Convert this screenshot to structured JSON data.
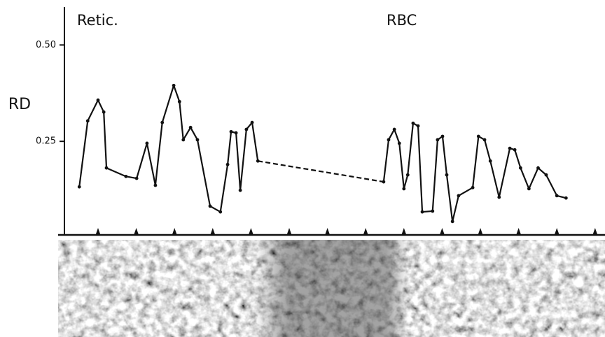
{
  "chart_data": {
    "type": "line",
    "title": "RD",
    "annotations": [
      "Retic.",
      "RBC"
    ],
    "color": "#111111",
    "ylim": [
      0,
      0.6
    ],
    "yticks": [
      {
        "value": 0.25,
        "label": "0.25"
      },
      {
        "value": 0.5,
        "label": "0.50"
      }
    ],
    "xlim": [
      0,
      14.25
    ],
    "xticks": [
      1,
      2,
      3,
      4,
      5,
      6,
      7,
      8,
      9,
      10,
      11,
      12,
      13,
      14
    ],
    "series": [
      {
        "style": "solid",
        "x": [
          0.51,
          0.73,
          1.0,
          1.15,
          1.22,
          1.73,
          2.01,
          2.28,
          2.5,
          2.68,
          2.98,
          3.13,
          3.23,
          3.42,
          3.6,
          3.93,
          4.2,
          4.39,
          4.48,
          4.61,
          4.72,
          4.88,
          5.03,
          5.18
        ],
        "values": [
          0.132,
          0.303,
          0.357,
          0.326,
          0.181,
          0.159,
          0.154,
          0.245,
          0.136,
          0.299,
          0.395,
          0.353,
          0.254,
          0.286,
          0.254,
          0.082,
          0.067,
          0.19,
          0.275,
          0.272,
          0.123,
          0.281,
          0.299,
          0.199
        ]
      },
      {
        "style": "dashed",
        "x": [
          5.18,
          8.47
        ],
        "values": [
          0.199,
          0.145
        ]
      },
      {
        "style": "solid",
        "x": [
          8.47,
          8.6,
          8.75,
          8.88,
          9.0,
          9.1,
          9.24,
          9.37,
          9.48,
          9.75,
          9.88,
          10.01,
          10.12,
          10.27,
          10.43,
          10.8,
          10.95,
          11.11,
          11.26,
          11.49,
          11.77,
          11.9,
          12.05,
          12.27,
          12.51,
          12.72,
          13.0,
          13.24
        ],
        "values": [
          0.145,
          0.254,
          0.281,
          0.245,
          0.127,
          0.163,
          0.297,
          0.29,
          0.067,
          0.069,
          0.254,
          0.263,
          0.163,
          0.042,
          0.109,
          0.13,
          0.263,
          0.254,
          0.199,
          0.105,
          0.232,
          0.228,
          0.181,
          0.127,
          0.181,
          0.163,
          0.109,
          0.103
        ]
      }
    ]
  }
}
